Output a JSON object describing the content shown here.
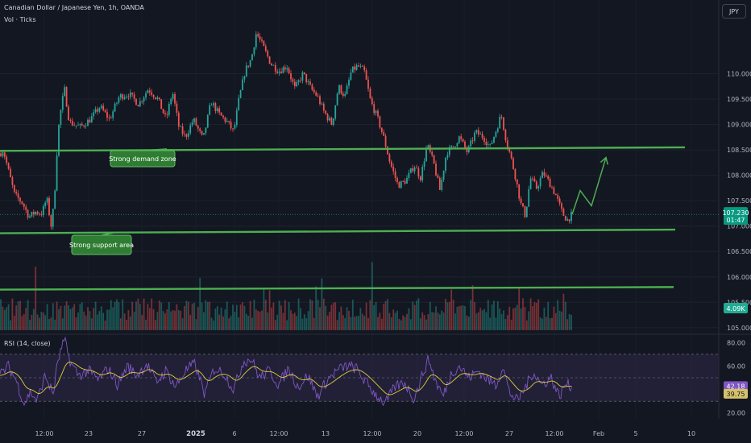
{
  "header": {
    "symbol_line": "Canadian Dollar / Japanese Yen, 1h, OANDA",
    "volume_label": "Vol · Ticks",
    "currency_button": "JPY"
  },
  "colors": {
    "background": "#131722",
    "up": "#26a69a",
    "down": "#ef5350",
    "annotation_line": "#4caf50",
    "label_bg": "#2e7d32",
    "rsi_line": "#7e57c2",
    "rsi_ma": "#ffeb3b",
    "rsi_band": "#2a2540"
  },
  "chart_data": [
    {
      "type": "candlestick",
      "title": "Canadian Dollar / Japanese Yen, 1h, OANDA",
      "y_axis": {
        "ticks": [
          "110.000",
          "109.500",
          "109.000",
          "108.500",
          "108.000",
          "107.500",
          "107.000",
          "106.500",
          "106.000",
          "105.500",
          "105.000"
        ],
        "ylim": [
          104.95,
          111.45
        ]
      },
      "x_axis": {
        "ticks": [
          "12:00",
          "23",
          "27",
          "2025",
          "6",
          "12:00",
          "13",
          "12:00",
          "20",
          "12:00",
          "27",
          "12:00",
          "Feb",
          "5",
          "10"
        ]
      },
      "price_anchors": [
        [
          0,
          108.43
        ],
        [
          4,
          108.5
        ],
        [
          10,
          108.12
        ],
        [
          18,
          107.62
        ],
        [
          28,
          107.45
        ],
        [
          36,
          107.18
        ],
        [
          44,
          107.28
        ],
        [
          52,
          107.25
        ],
        [
          58,
          107.55
        ],
        [
          64,
          106.95
        ],
        [
          68,
          107.7
        ],
        [
          72,
          108.85
        ],
        [
          76,
          109.35
        ],
        [
          80,
          109.7
        ],
        [
          86,
          109.05
        ],
        [
          92,
          109.0
        ],
        [
          100,
          108.95
        ],
        [
          112,
          109.1
        ],
        [
          124,
          109.35
        ],
        [
          136,
          109.1
        ],
        [
          148,
          109.55
        ],
        [
          160,
          109.6
        ],
        [
          172,
          109.4
        ],
        [
          184,
          109.7
        ],
        [
          196,
          109.5
        ],
        [
          206,
          109.1
        ],
        [
          214,
          109.65
        ],
        [
          222,
          108.95
        ],
        [
          230,
          108.75
        ],
        [
          240,
          109.1
        ],
        [
          252,
          108.7
        ],
        [
          262,
          109.45
        ],
        [
          272,
          109.2
        ],
        [
          282,
          109.05
        ],
        [
          290,
          108.85
        ],
        [
          296,
          109.45
        ],
        [
          304,
          110.05
        ],
        [
          312,
          110.3
        ],
        [
          318,
          110.8
        ],
        [
          326,
          110.55
        ],
        [
          336,
          110.2
        ],
        [
          346,
          110.05
        ],
        [
          356,
          110.15
        ],
        [
          366,
          109.7
        ],
        [
          376,
          110.0
        ],
        [
          386,
          109.7
        ],
        [
          394,
          109.55
        ],
        [
          402,
          109.25
        ],
        [
          412,
          109.0
        ],
        [
          420,
          109.75
        ],
        [
          428,
          109.55
        ],
        [
          436,
          110.05
        ],
        [
          444,
          110.15
        ],
        [
          452,
          110.05
        ],
        [
          460,
          109.45
        ],
        [
          468,
          109.15
        ],
        [
          476,
          108.75
        ],
        [
          484,
          108.25
        ],
        [
          494,
          107.8
        ],
        [
          504,
          107.9
        ],
        [
          514,
          108.2
        ],
        [
          522,
          107.95
        ],
        [
          530,
          108.6
        ],
        [
          538,
          108.25
        ],
        [
          546,
          107.7
        ],
        [
          554,
          108.45
        ],
        [
          562,
          108.55
        ],
        [
          570,
          108.75
        ],
        [
          580,
          108.45
        ],
        [
          590,
          108.85
        ],
        [
          600,
          108.75
        ],
        [
          608,
          108.55
        ],
        [
          616,
          108.9
        ],
        [
          622,
          109.2
        ],
        [
          628,
          108.7
        ],
        [
          634,
          108.35
        ],
        [
          640,
          107.95
        ],
        [
          646,
          107.45
        ],
        [
          652,
          107.2
        ],
        [
          658,
          107.95
        ],
        [
          666,
          107.75
        ],
        [
          674,
          108.05
        ],
        [
          682,
          107.85
        ],
        [
          690,
          107.6
        ],
        [
          698,
          107.25
        ],
        [
          704,
          107.12
        ],
        [
          710,
          107.23
        ]
      ],
      "projection": [
        [
          710,
          107.23
        ],
        [
          720,
          107.7
        ],
        [
          734,
          107.4
        ],
        [
          752,
          108.35
        ]
      ],
      "annotations": [
        {
          "text": "Strong demand zone",
          "line": [
            [
              0,
              108.48
            ],
            [
              850,
              108.55
            ]
          ]
        },
        {
          "text": "Strong support area",
          "line": [
            [
              0,
              106.86
            ],
            [
              838,
              106.93
            ]
          ]
        },
        {
          "text": "",
          "line": [
            [
              0,
              105.75
            ],
            [
              836,
              105.8
            ]
          ]
        }
      ],
      "last_price": {
        "value": "107.230",
        "countdown": "01:47"
      }
    },
    {
      "type": "bar",
      "title": "Vol · Ticks",
      "value_label": "4.09K"
    },
    {
      "type": "line",
      "title": "RSI (14, close)",
      "y_axis": {
        "ticks": [
          "80.00",
          "60.00",
          "40.00",
          "20.00"
        ],
        "ylim": [
          15,
          85
        ]
      },
      "band": [
        30,
        70
      ],
      "last_values": {
        "rsi": "42.18",
        "rsi_ma": "39.75"
      },
      "rsi_anchors": [
        [
          0,
          52
        ],
        [
          10,
          60
        ],
        [
          20,
          48
        ],
        [
          30,
          28
        ],
        [
          38,
          38
        ],
        [
          46,
          30
        ],
        [
          56,
          52
        ],
        [
          66,
          36
        ],
        [
          72,
          65
        ],
        [
          80,
          82
        ],
        [
          88,
          62
        ],
        [
          98,
          52
        ],
        [
          110,
          56
        ],
        [
          122,
          48
        ],
        [
          134,
          58
        ],
        [
          146,
          44
        ],
        [
          158,
          60
        ],
        [
          170,
          52
        ],
        [
          182,
          62
        ],
        [
          194,
          46
        ],
        [
          206,
          56
        ],
        [
          218,
          42
        ],
        [
          230,
          56
        ],
        [
          242,
          62
        ],
        [
          254,
          36
        ],
        [
          266,
          58
        ],
        [
          278,
          54
        ],
        [
          290,
          40
        ],
        [
          302,
          64
        ],
        [
          312,
          66
        ],
        [
          322,
          50
        ],
        [
          334,
          56
        ],
        [
          346,
          44
        ],
        [
          358,
          58
        ],
        [
          370,
          42
        ],
        [
          382,
          52
        ],
        [
          394,
          34
        ],
        [
          406,
          48
        ],
        [
          418,
          56
        ],
        [
          430,
          60
        ],
        [
          442,
          58
        ],
        [
          454,
          46
        ],
        [
          466,
          36
        ],
        [
          478,
          28
        ],
        [
          490,
          42
        ],
        [
          502,
          46
        ],
        [
          514,
          32
        ],
        [
          526,
          56
        ],
        [
          532,
          66
        ],
        [
          540,
          48
        ],
        [
          550,
          34
        ],
        [
          560,
          54
        ],
        [
          570,
          60
        ],
        [
          582,
          50
        ],
        [
          594,
          56
        ],
        [
          606,
          48
        ],
        [
          616,
          44
        ],
        [
          624,
          60
        ],
        [
          632,
          38
        ],
        [
          642,
          30
        ],
        [
          652,
          42
        ],
        [
          662,
          55
        ],
        [
          672,
          44
        ],
        [
          684,
          50
        ],
        [
          694,
          34
        ],
        [
          702,
          45
        ],
        [
          710,
          42
        ]
      ]
    }
  ]
}
